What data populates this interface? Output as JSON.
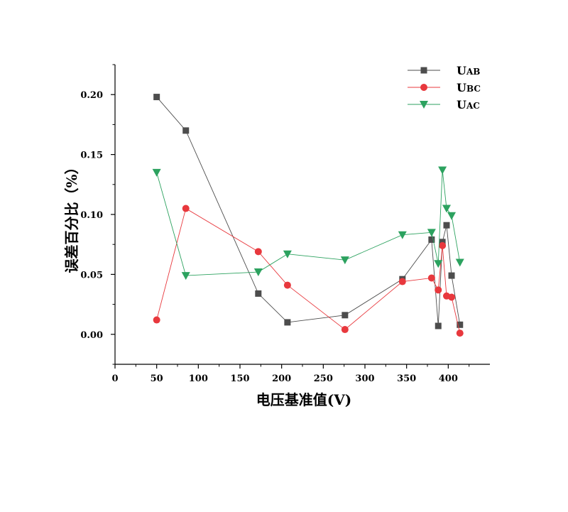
{
  "chart_data": {
    "type": "line",
    "xlabel": "电压基准值(V)",
    "ylabel": "误差百分比（%）",
    "xlim": [
      0,
      450
    ],
    "ylim": [
      -0.025,
      0.225
    ],
    "x_ticks": [
      0,
      50,
      100,
      150,
      200,
      250,
      300,
      350,
      400
    ],
    "y_ticks": [
      0.0,
      0.05,
      0.1,
      0.15,
      0.2
    ],
    "x_tick_labels": [
      "0",
      "50",
      "100",
      "150",
      "200",
      "250",
      "300",
      "350",
      "400"
    ],
    "y_tick_labels": [
      "0.00",
      "0.05",
      "0.10",
      "0.15",
      "0.20"
    ],
    "grid": false,
    "legend_position": "top-right",
    "series": [
      {
        "name": "UAB",
        "name_main": "U",
        "name_sub": "AB",
        "color": "#4d4d4d",
        "marker": "square",
        "x": [
          50,
          85,
          172,
          207,
          276,
          345,
          380,
          388,
          393,
          398,
          404,
          414
        ],
        "y": [
          0.198,
          0.17,
          0.034,
          0.01,
          0.016,
          0.046,
          0.079,
          0.007,
          0.077,
          0.091,
          0.049,
          0.008
        ]
      },
      {
        "name": "UBC",
        "name_main": "U",
        "name_sub": "BC",
        "color": "#e8383d",
        "marker": "circle",
        "x": [
          50,
          85,
          172,
          207,
          276,
          345,
          380,
          388,
          393,
          398,
          404,
          414
        ],
        "y": [
          0.012,
          0.105,
          0.069,
          0.041,
          0.004,
          0.044,
          0.047,
          0.037,
          0.074,
          0.032,
          0.031,
          0.001
        ]
      },
      {
        "name": "UAC",
        "name_main": "U",
        "name_sub": "AC",
        "color": "#2ca25f",
        "marker": "triangle-down",
        "x": [
          50,
          85,
          172,
          207,
          276,
          345,
          380,
          388,
          393,
          398,
          404,
          414
        ],
        "y": [
          0.135,
          0.049,
          0.052,
          0.067,
          0.062,
          0.083,
          0.085,
          0.059,
          0.137,
          0.105,
          0.099,
          0.06
        ]
      }
    ]
  }
}
